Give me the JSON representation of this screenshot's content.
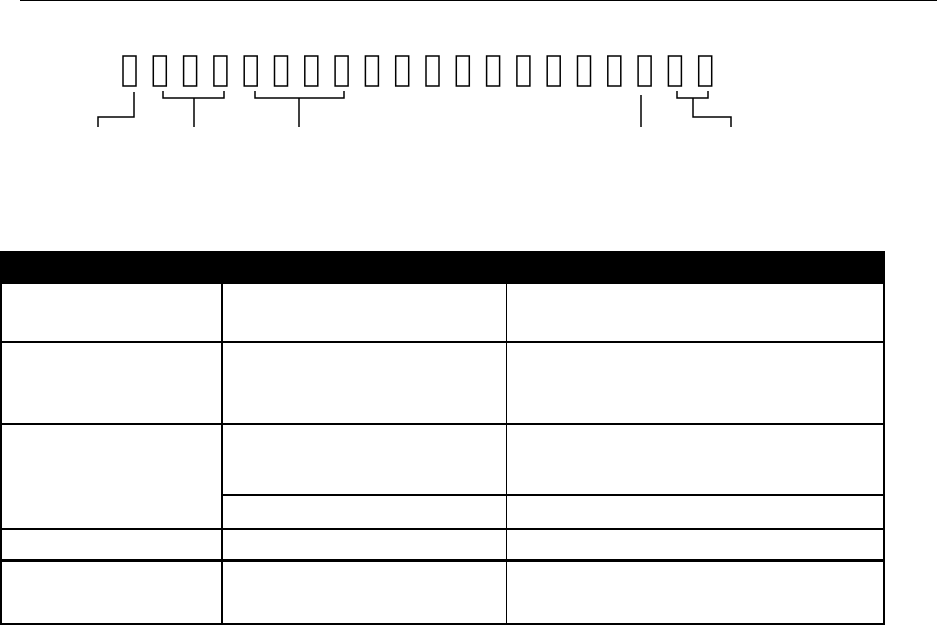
{
  "document": {
    "diagram": {
      "box_count": 20
    },
    "table": {
      "header": [
        "",
        "",
        ""
      ],
      "rows": [
        [
          "",
          "",
          ""
        ],
        [
          "",
          "",
          ""
        ],
        [
          "",
          "",
          ""
        ],
        [
          "",
          "",
          ""
        ],
        [
          "",
          "",
          ""
        ],
        [
          "",
          "",
          ""
        ]
      ]
    }
  },
  "colors": {
    "ink": "#000000",
    "paper": "#ffffff"
  }
}
